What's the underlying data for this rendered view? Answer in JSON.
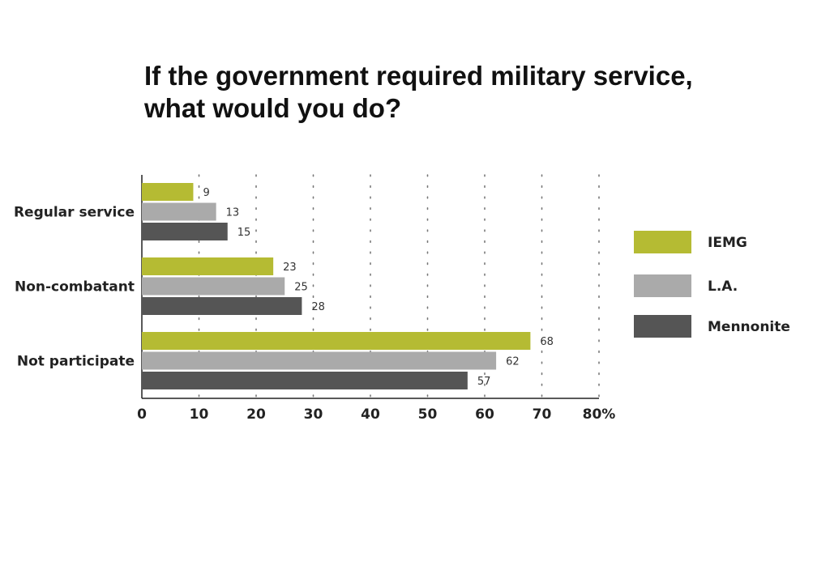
{
  "chart_data": {
    "type": "bar",
    "orientation": "horizontal",
    "title_lines": [
      "If the government required military service,",
      "what would you do?"
    ],
    "categories": [
      "Regular service",
      "Non-combatant",
      "Not participate"
    ],
    "series": [
      {
        "name": "IEMG",
        "color": "#b5bb33",
        "values": [
          9,
          23,
          68
        ]
      },
      {
        "name": "L.A.",
        "color": "#aaaaaa",
        "values": [
          13,
          25,
          62
        ]
      },
      {
        "name": "Mennonite",
        "color": "#555555",
        "values": [
          15,
          28,
          57
        ]
      }
    ],
    "x_ticks": [
      "0",
      "10",
      "20",
      "30",
      "40",
      "50",
      "60",
      "70",
      "80%"
    ],
    "xlim": [
      0,
      80
    ],
    "grid": "vertical dotted",
    "legend_position": "right"
  }
}
